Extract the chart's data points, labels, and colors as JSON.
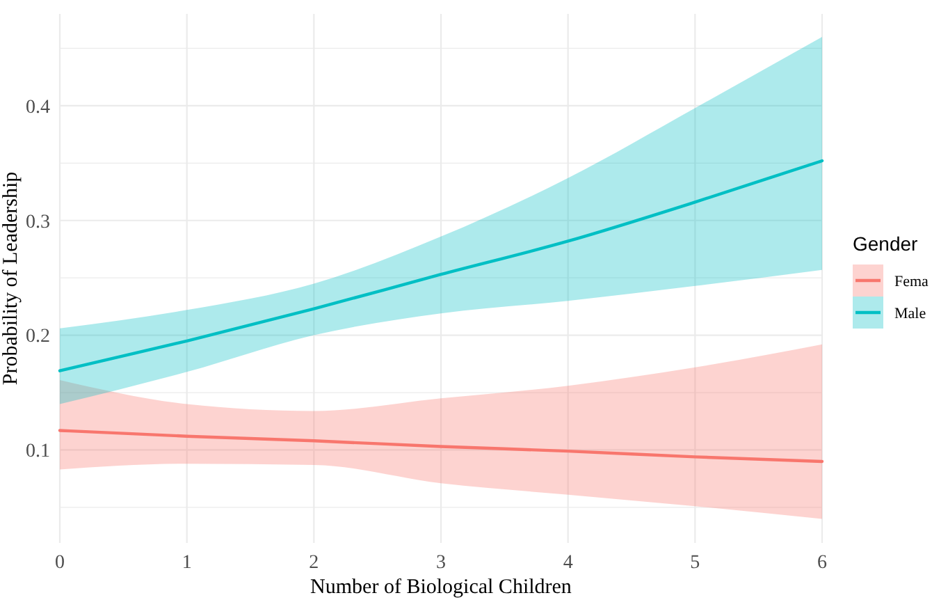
{
  "chart_data": {
    "type": "line",
    "xlabel": "Number of Biological Children",
    "ylabel": "Probability of Leadership",
    "legend_title": "Gender",
    "legend": "right",
    "grid": true,
    "x": [
      0,
      1,
      2,
      3,
      4,
      5,
      6
    ],
    "xlim": [
      0,
      6
    ],
    "ylim": [
      0.019,
      0.48
    ],
    "xticks": [
      0,
      1,
      2,
      3,
      4,
      5,
      6
    ],
    "yticks": [
      {
        "value": 0.05,
        "label": null
      },
      0.1,
      {
        "value": 0.15,
        "label": null
      },
      0.2,
      {
        "value": 0.25,
        "label": null
      },
      0.3,
      {
        "value": 0.35,
        "label": null
      },
      0.4,
      {
        "value": 0.45,
        "label": null
      }
    ],
    "series": [
      {
        "name": "Fema",
        "color": "#f8766d",
        "values": [
          0.117,
          0.112,
          0.108,
          0.103,
          0.099,
          0.094,
          0.09
        ],
        "lower": [
          0.083,
          0.088,
          0.087,
          0.071,
          0.061,
          0.051,
          0.04
        ],
        "upper": [
          0.161,
          0.14,
          0.134,
          0.145,
          0.156,
          0.172,
          0.192
        ]
      },
      {
        "name": "Male",
        "color": "#00bfc4",
        "values": [
          0.169,
          0.195,
          0.223,
          0.253,
          0.282,
          0.316,
          0.352
        ],
        "lower": [
          0.14,
          0.168,
          0.2,
          0.219,
          0.23,
          0.243,
          0.257
        ],
        "upper": [
          0.206,
          0.222,
          0.245,
          0.286,
          0.337,
          0.398,
          0.46
        ]
      }
    ]
  }
}
